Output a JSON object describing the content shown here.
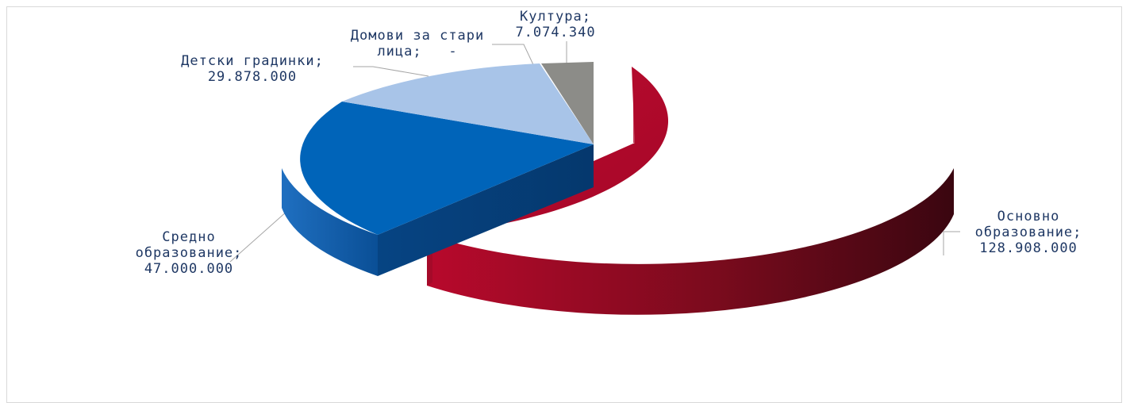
{
  "chart_data": {
    "type": "pie",
    "variant": "3d-exploded",
    "slices": [
      {
        "name": "Основно образование",
        "value": 128908000,
        "value_label": "128.908.000",
        "color": "#b5082a"
      },
      {
        "name": "Средно образование",
        "value": 47000000,
        "value_label": "47.000.000",
        "color": "#0063b7"
      },
      {
        "name": "Детски градинки",
        "value": 29878000,
        "value_label": "29.878.000",
        "color": "#a8c4e8"
      },
      {
        "name": "Домови за стари лица",
        "value": 0,
        "value_label": "-",
        "color": "#a6a6a6"
      },
      {
        "name": "Култура",
        "value": 7074340,
        "value_label": "7.074.340",
        "color": "#8c8c8c"
      }
    ],
    "legend": "none",
    "data_labels": {
      "osnovno": [
        "Основно",
        "образование;",
        "128.908.000"
      ],
      "sredno": [
        "Средно",
        "образование;",
        "47.000.000"
      ],
      "detski": [
        "Детски градинки;",
        "29.878.000"
      ],
      "domovi": [
        "Домови за стари",
        "лица;   -"
      ],
      "kultura": [
        "Култура;",
        "7.074.340"
      ]
    }
  }
}
